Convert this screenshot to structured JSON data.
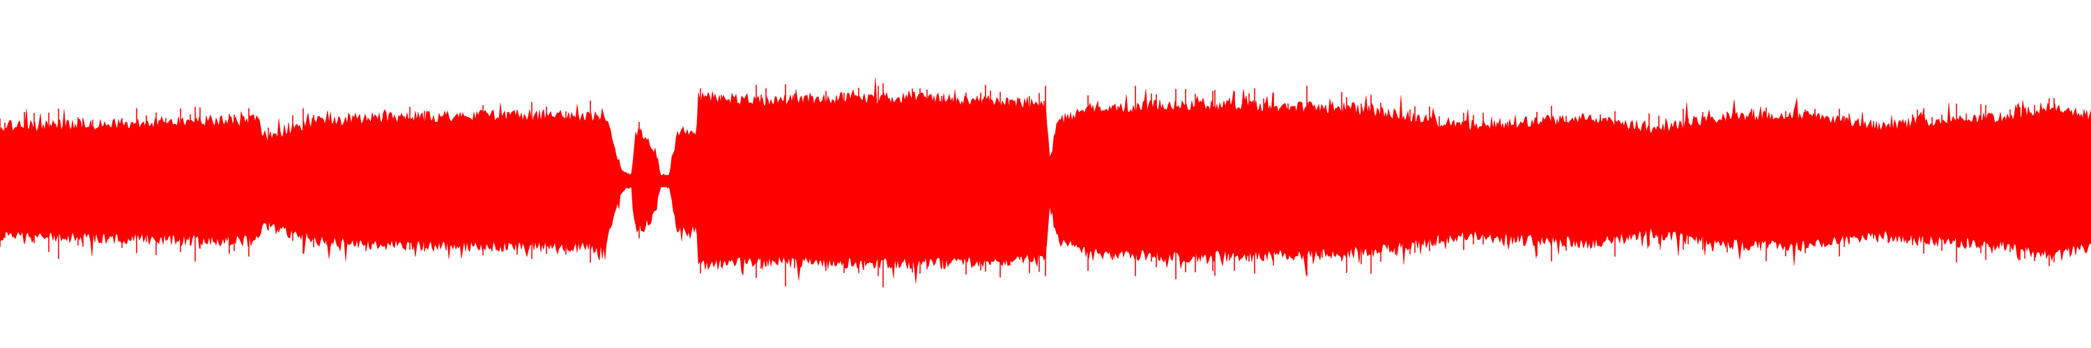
{
  "waveform": {
    "color": "#ff0000",
    "background": "#ffffff",
    "channels": 1,
    "envelope": [
      [
        0.0,
        0.37
      ],
      [
        0.04,
        0.38
      ],
      [
        0.08,
        0.4
      ],
      [
        0.124,
        0.41
      ],
      [
        0.126,
        0.29
      ],
      [
        0.135,
        0.33
      ],
      [
        0.15,
        0.4
      ],
      [
        0.17,
        0.43
      ],
      [
        0.2,
        0.44
      ],
      [
        0.24,
        0.45
      ],
      [
        0.265,
        0.45
      ],
      [
        0.29,
        0.44
      ],
      [
        0.292,
        0.3
      ],
      [
        0.297,
        0.08
      ],
      [
        0.3,
        0.04
      ],
      [
        0.302,
        0.04
      ],
      [
        0.304,
        0.33
      ],
      [
        0.308,
        0.3
      ],
      [
        0.312,
        0.22
      ],
      [
        0.316,
        0.04
      ],
      [
        0.32,
        0.04
      ],
      [
        0.324,
        0.3
      ],
      [
        0.33,
        0.35
      ],
      [
        0.333,
        0.3
      ],
      [
        0.334,
        0.6
      ],
      [
        0.36,
        0.56
      ],
      [
        0.4,
        0.58
      ],
      [
        0.44,
        0.58
      ],
      [
        0.48,
        0.56
      ],
      [
        0.5,
        0.52
      ],
      [
        0.502,
        0.12
      ],
      [
        0.506,
        0.4
      ],
      [
        0.52,
        0.5
      ],
      [
        0.56,
        0.53
      ],
      [
        0.6,
        0.52
      ],
      [
        0.64,
        0.51
      ],
      [
        0.66,
        0.48
      ],
      [
        0.7,
        0.37
      ],
      [
        0.73,
        0.4
      ],
      [
        0.76,
        0.43
      ],
      [
        0.79,
        0.35
      ],
      [
        0.82,
        0.43
      ],
      [
        0.86,
        0.45
      ],
      [
        0.9,
        0.37
      ],
      [
        0.93,
        0.42
      ],
      [
        0.96,
        0.44
      ],
      [
        0.98,
        0.52
      ],
      [
        1.0,
        0.45
      ]
    ],
    "peaks": [
      [
        0.145,
        0.55
      ],
      [
        0.15,
        0.5
      ],
      [
        0.17,
        0.48
      ],
      [
        0.335,
        0.7
      ],
      [
        0.345,
        0.65
      ],
      [
        0.38,
        0.66
      ],
      [
        0.395,
        0.68
      ],
      [
        0.42,
        0.72
      ],
      [
        0.44,
        0.7
      ],
      [
        0.47,
        0.62
      ],
      [
        0.5,
        0.72
      ],
      [
        0.543,
        0.72
      ],
      [
        0.58,
        0.68
      ],
      [
        0.6,
        0.7
      ],
      [
        0.625,
        0.72
      ],
      [
        0.92,
        0.55
      ],
      [
        0.965,
        0.58
      ]
    ]
  }
}
